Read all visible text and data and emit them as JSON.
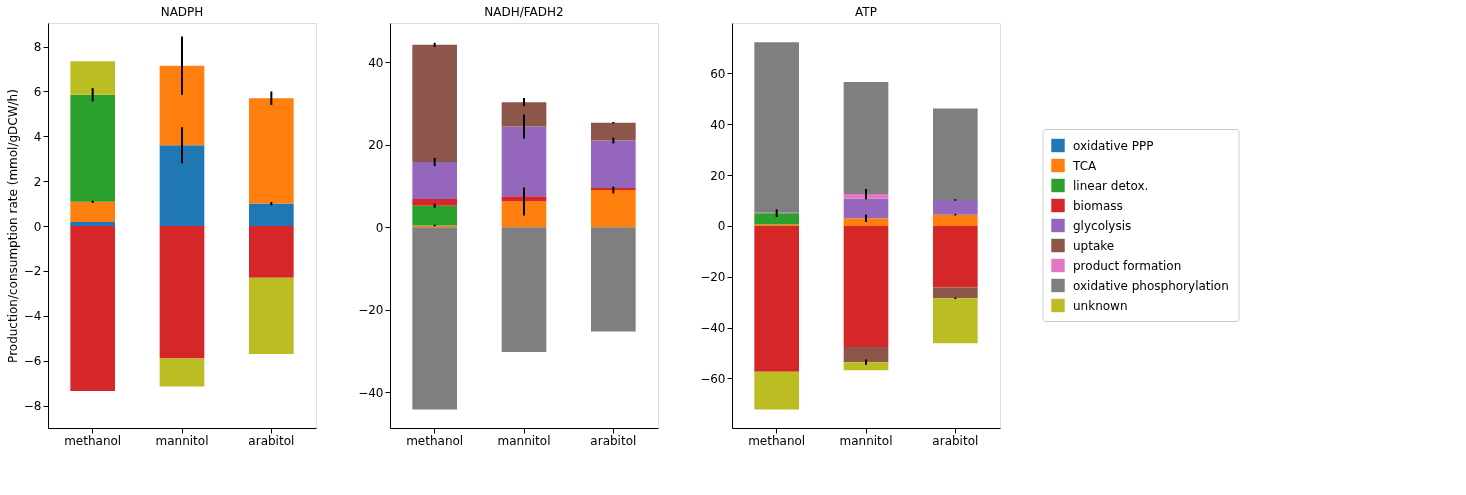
{
  "chart_data": [
    {
      "type": "bar",
      "title": "NADPH",
      "ylabel": "Production/consumption rate (mmol/gDCW/h)",
      "stacked": true,
      "categories": [
        "methanol",
        "mannitol",
        "arabitol"
      ],
      "ylim": [
        -9.0,
        9.05
      ],
      "yticks": [
        -8,
        -6,
        -4,
        -2,
        0,
        2,
        4,
        6,
        8
      ],
      "grid": false,
      "legend": "right",
      "series": [
        {
          "name": "oxidative PPP",
          "color": "#1f77b4",
          "values": [
            0.18,
            3.6,
            1.0
          ],
          "errors": [
            null,
            0.8,
            0.07
          ]
        },
        {
          "name": "TCA",
          "color": "#ff7f0e",
          "values": [
            0.9,
            3.55,
            4.7
          ],
          "errors": [
            0.05,
            1.3,
            0.3
          ]
        },
        {
          "name": "linear detox.",
          "color": "#2ca02c",
          "values": [
            4.77,
            null,
            null
          ],
          "errors": [
            0.3,
            null,
            null
          ]
        },
        {
          "name": "biomass",
          "color": "#d62728",
          "values": [
            -7.35,
            -5.9,
            -2.3
          ]
        },
        {
          "name": "unknown",
          "color": "#bcbd22",
          "values": [
            1.5,
            -1.25,
            -3.4
          ]
        }
      ]
    },
    {
      "type": "bar",
      "title": "NADH/FADH2",
      "stacked": true,
      "categories": [
        "methanol",
        "mannitol",
        "arabitol"
      ],
      "ylim": [
        -48.7,
        49.5
      ],
      "yticks": [
        -40,
        -20,
        0,
        20,
        40
      ],
      "grid": false,
      "legend": "right",
      "series": [
        {
          "name": "TCA",
          "color": "#ff7f0e",
          "values": [
            0.4,
            6.2,
            9.0
          ],
          "errors": [
            0.2,
            3.4,
            0.8
          ]
        },
        {
          "name": "linear detox.",
          "color": "#2ca02c",
          "values": [
            4.8,
            null,
            null
          ],
          "errors": [
            0.5,
            null,
            null
          ]
        },
        {
          "name": "biomass",
          "color": "#d62728",
          "values": [
            1.6,
            1.3,
            0.5
          ]
        },
        {
          "name": "glycolysis",
          "color": "#9467bd",
          "values": [
            9.0,
            16.9,
            11.5
          ],
          "errors": [
            1.0,
            2.9,
            0.7
          ]
        },
        {
          "name": "uptake",
          "color": "#8c564b",
          "values": [
            28.4,
            5.9,
            4.3
          ],
          "errors": [
            0.5,
            1.0,
            0.2
          ]
        },
        {
          "name": "oxidative phosphorylation",
          "color": "#7f7f7f",
          "values": [
            -44.2,
            -30.3,
            -25.3
          ]
        }
      ]
    },
    {
      "type": "bar",
      "title": "ATP",
      "stacked": true,
      "categories": [
        "methanol",
        "mannitol",
        "arabitol"
      ],
      "ylim": [
        -79.5,
        79.8
      ],
      "yticks": [
        -60,
        -40,
        -20,
        0,
        20,
        40,
        60
      ],
      "grid": false,
      "legend": "right",
      "series": [
        {
          "name": "oxidative PPP",
          "color": "#1f77b4",
          "values": [
            null,
            null,
            null
          ]
        },
        {
          "name": "TCA",
          "color": "#ff7f0e",
          "values": [
            0.5,
            3.0,
            4.4
          ],
          "errors": [
            null,
            1.5,
            0.3
          ]
        },
        {
          "name": "linear detox.",
          "color": "#2ca02c",
          "values": [
            4.5,
            null,
            null
          ],
          "errors": [
            1.5,
            null,
            null
          ]
        },
        {
          "name": "biomass",
          "color": "#d62728",
          "values": [
            -57.4,
            -47.6,
            -24.2
          ]
        },
        {
          "name": "glycolysis",
          "color": "#9467bd",
          "values": [
            0.3,
            7.8,
            5.8
          ],
          "errors": [
            null,
            null,
            0.3
          ]
        },
        {
          "name": "uptake",
          "color": "#8c564b",
          "values": [
            null,
            -6.0,
            -4.3
          ],
          "errors": [
            null,
            1.0,
            0.3
          ]
        },
        {
          "name": "product formation",
          "color": "#e377c2",
          "values": [
            null,
            1.7,
            null
          ],
          "errors": [
            null,
            2.0,
            null
          ]
        },
        {
          "name": "oxidative phosphorylation",
          "color": "#7f7f7f",
          "values": [
            66.9,
            44.1,
            36.0
          ]
        },
        {
          "name": "unknown",
          "color": "#bcbd22",
          "values": [
            -14.8,
            -3.2,
            -17.7
          ]
        }
      ]
    }
  ]
}
